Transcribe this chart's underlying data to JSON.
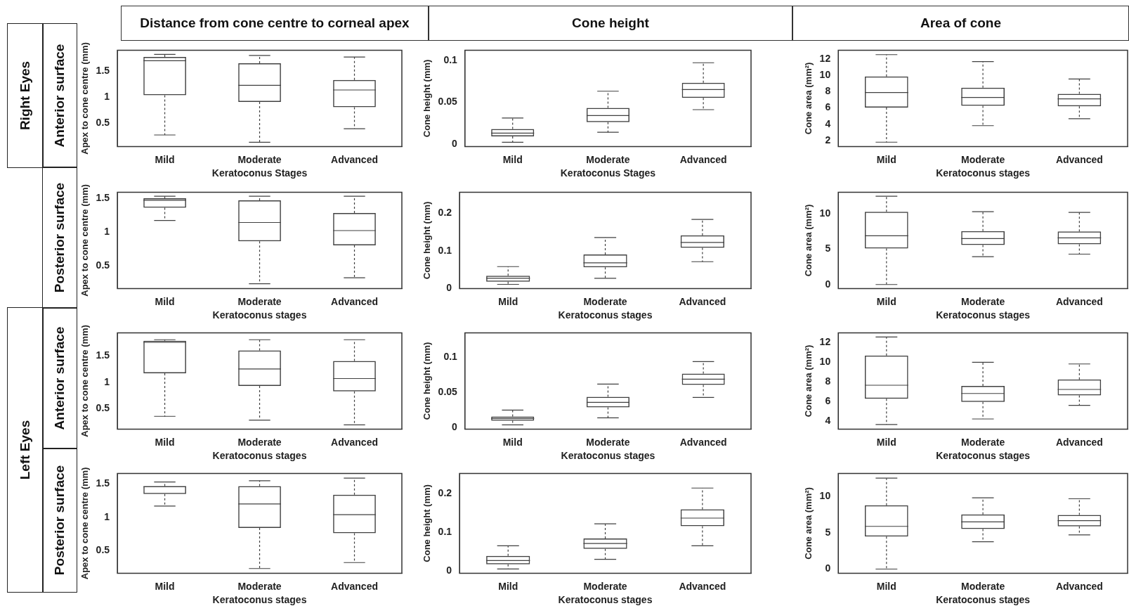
{
  "chart_data": [
    {
      "type": "box",
      "title": "Distance from cone centre to corneal apex",
      "categories": [
        "Mild",
        "Moderate",
        "Advanced"
      ],
      "xlabel": "Keratoconus Stages",
      "ylabel": "Apex to cone centre (mm)",
      "ylim": [
        0.06,
        1.9
      ],
      "yticks": [
        0.5,
        1,
        1.5
      ],
      "grid": false,
      "series": [
        {
          "color": "#404040",
          "boxes": [
            {
              "low": 0.28,
              "q1": 1.04,
              "median": 1.7,
              "q3": 1.77,
              "high": 1.82
            },
            {
              "low": 0.14,
              "q1": 0.91,
              "median": 1.23,
              "q3": 1.65,
              "high": 1.8
            },
            {
              "low": 0.4,
              "q1": 0.81,
              "median": 1.14,
              "q3": 1.33,
              "high": 1.77
            }
          ]
        }
      ]
    },
    {
      "type": "box",
      "title": "Cone height",
      "categories": [
        "Mild",
        "Moderate",
        "Advanced"
      ],
      "xlabel": "Keratoconus Stages",
      "ylabel": "Cone height (mm)",
      "ylim": [
        -0.003,
        0.112
      ],
      "yticks": [
        0,
        0.05,
        0.1
      ],
      "grid": false,
      "series": [
        {
          "color": "#404040",
          "boxes": [
            {
              "low": 0.002,
              "q1": 0.009,
              "median": 0.013,
              "q3": 0.018,
              "high": 0.031
            },
            {
              "low": 0.014,
              "q1": 0.026,
              "median": 0.034,
              "q3": 0.043,
              "high": 0.063
            },
            {
              "low": 0.041,
              "q1": 0.055,
              "median": 0.065,
              "q3": 0.073,
              "high": 0.097
            }
          ]
        }
      ]
    },
    {
      "type": "box",
      "title": "Area of cone",
      "categories": [
        "Mild",
        "Moderate",
        "Advanced"
      ],
      "xlabel": "Keratoconus stages",
      "ylabel": "Cone area (mm²)",
      "ylim": [
        1.27,
        13.1
      ],
      "yticks": [
        2,
        4,
        6,
        8,
        10,
        12
      ],
      "grid": false,
      "series": [
        {
          "color": "#404040",
          "boxes": [
            {
              "low": 1.8,
              "q1": 6.05,
              "median": 7.9,
              "q3": 9.87,
              "high": 12.55
            },
            {
              "low": 3.83,
              "q1": 6.28,
              "median": 7.3,
              "q3": 8.5,
              "high": 11.7
            },
            {
              "low": 4.69,
              "q1": 6.2,
              "median": 7.13,
              "q3": 7.74,
              "high": 9.57
            }
          ]
        }
      ]
    },
    {
      "type": "box",
      "categories": [
        "Mild",
        "Moderate",
        "Advanced"
      ],
      "xlabel": "Keratoconus stages",
      "ylabel": "Apex to cone centre (mm)",
      "ylim": [
        0.16,
        1.59
      ],
      "yticks": [
        0.5,
        1,
        1.5
      ],
      "grid": false,
      "series": [
        {
          "color": "#404040",
          "boxes": [
            {
              "low": 1.17,
              "q1": 1.36,
              "median": 1.47,
              "q3": 1.5,
              "high": 1.53
            },
            {
              "low": 0.23,
              "q1": 0.86,
              "median": 1.14,
              "q3": 1.47,
              "high": 1.53
            },
            {
              "low": 0.32,
              "q1": 0.8,
              "median": 1.02,
              "q3": 1.28,
              "high": 1.53
            }
          ]
        }
      ]
    },
    {
      "type": "box",
      "categories": [
        "Mild",
        "Moderate",
        "Advanced"
      ],
      "xlabel": "Keratoconus stages",
      "ylabel": "Cone height (mm)",
      "ylim": [
        0,
        0.255
      ],
      "yticks": [
        0,
        0.1,
        0.2
      ],
      "grid": false,
      "series": [
        {
          "color": "#404040",
          "boxes": [
            {
              "low": 0.011,
              "q1": 0.018,
              "median": 0.027,
              "q3": 0.034,
              "high": 0.058
            },
            {
              "low": 0.027,
              "q1": 0.056,
              "median": 0.068,
              "q3": 0.09,
              "high": 0.135
            },
            {
              "low": 0.071,
              "q1": 0.108,
              "median": 0.122,
              "q3": 0.141,
              "high": 0.183
            }
          ]
        }
      ]
    },
    {
      "type": "box",
      "categories": [
        "Mild",
        "Moderate",
        "Advanced"
      ],
      "xlabel": "Keratoconus stages",
      "ylabel": "Cone area (mm²)",
      "ylim": [
        -0.56,
        13.06
      ],
      "yticks": [
        0,
        5,
        10
      ],
      "grid": false,
      "series": [
        {
          "color": "#404040",
          "boxes": [
            {
              "low": 0,
              "q1": 5.1,
              "median": 6.9,
              "q3": 10.3,
              "high": 12.5
            },
            {
              "low": 3.95,
              "q1": 5.6,
              "median": 6.5,
              "q3": 7.55,
              "high": 10.3
            },
            {
              "low": 4.3,
              "q1": 5.7,
              "median": 6.6,
              "q3": 7.5,
              "high": 10.2
            }
          ]
        }
      ]
    },
    {
      "type": "box",
      "categories": [
        "Mild",
        "Moderate",
        "Advanced"
      ],
      "xlabel": "Keratoconus stages",
      "ylabel": "Apex to cone centre (mm)",
      "ylim": [
        0.12,
        1.93
      ],
      "yticks": [
        0.5,
        1,
        1.5
      ],
      "grid": false,
      "series": [
        {
          "color": "#404040",
          "boxes": [
            {
              "low": 0.36,
              "q1": 1.17,
              "median": 1.75,
              "q3": 1.78,
              "high": 1.8
            },
            {
              "low": 0.29,
              "q1": 0.93,
              "median": 1.25,
              "q3": 1.6,
              "high": 1.8
            },
            {
              "low": 0.2,
              "q1": 0.83,
              "median": 1.07,
              "q3": 1.4,
              "high": 1.8
            }
          ]
        }
      ]
    },
    {
      "type": "box",
      "categories": [
        "Mild",
        "Moderate",
        "Advanced"
      ],
      "xlabel": "Keratoconus stages",
      "ylabel": "Cone height (mm)",
      "ylim": [
        -0.002,
        0.135
      ],
      "yticks": [
        0,
        0.05,
        0.1
      ],
      "grid": false,
      "series": [
        {
          "color": "#404040",
          "boxes": [
            {
              "low": 0.004,
              "q1": 0.01,
              "median": 0.013,
              "q3": 0.016,
              "high": 0.025
            },
            {
              "low": 0.014,
              "q1": 0.029,
              "median": 0.036,
              "q3": 0.044,
              "high": 0.062
            },
            {
              "low": 0.043,
              "q1": 0.061,
              "median": 0.069,
              "q3": 0.077,
              "high": 0.094
            }
          ]
        }
      ]
    },
    {
      "type": "box",
      "categories": [
        "Mild",
        "Moderate",
        "Advanced"
      ],
      "xlabel": "Keratoconus stages",
      "ylabel": "Cone area (mm²)",
      "ylim": [
        3.21,
        13
      ],
      "yticks": [
        4,
        6,
        8,
        10,
        12
      ],
      "grid": false,
      "series": [
        {
          "color": "#404040",
          "boxes": [
            {
              "low": 3.67,
              "q1": 6.29,
              "median": 7.67,
              "q3": 10.69,
              "high": 12.57
            },
            {
              "low": 4.24,
              "q1": 5.98,
              "median": 6.83,
              "q3": 7.6,
              "high": 10
            },
            {
              "low": 5.62,
              "q1": 6.64,
              "median": 7.24,
              "q3": 8.26,
              "high": 9.83
            }
          ]
        }
      ]
    },
    {
      "type": "box",
      "categories": [
        "Mild",
        "Moderate",
        "Advanced"
      ],
      "xlabel": "Keratoconus stages",
      "ylabel": "Apex to cone centre (mm)",
      "ylim": [
        0.16,
        1.66
      ],
      "yticks": [
        0.5,
        1,
        1.5
      ],
      "grid": false,
      "series": [
        {
          "color": "#404040",
          "boxes": [
            {
              "low": 1.17,
              "q1": 1.35,
              "median": 1.46,
              "q3": 1.47,
              "high": 1.53
            },
            {
              "low": 0.23,
              "q1": 0.84,
              "median": 1.2,
              "q3": 1.47,
              "high": 1.55
            },
            {
              "low": 0.32,
              "q1": 0.76,
              "median": 1.04,
              "q3": 1.34,
              "high": 1.59
            }
          ]
        }
      ]
    },
    {
      "type": "box",
      "categories": [
        "Mild",
        "Moderate",
        "Advanced"
      ],
      "xlabel": "Keratoconus stages",
      "ylabel": "Cone height (mm)",
      "ylim": [
        -0.006,
        0.253
      ],
      "yticks": [
        0,
        0.1,
        0.2
      ],
      "grid": false,
      "series": [
        {
          "color": "#404040",
          "boxes": [
            {
              "low": 0.005,
              "q1": 0.017,
              "median": 0.027,
              "q3": 0.039,
              "high": 0.065
            },
            {
              "low": 0.03,
              "q1": 0.057,
              "median": 0.071,
              "q3": 0.084,
              "high": 0.122
            },
            {
              "low": 0.065,
              "q1": 0.116,
              "median": 0.137,
              "q3": 0.16,
              "high": 0.215
            }
          ]
        }
      ]
    },
    {
      "type": "box",
      "categories": [
        "Mild",
        "Moderate",
        "Advanced"
      ],
      "xlabel": "Keratoconus stages",
      "ylabel": "Cone area (mm²)",
      "ylim": [
        -0.57,
        13.15
      ],
      "yticks": [
        0,
        5,
        10
      ],
      "grid": false,
      "series": [
        {
          "color": "#404040",
          "boxes": [
            {
              "low": 0,
              "q1": 4.46,
              "median": 5.87,
              "q3": 8.76,
              "high": 12.5
            },
            {
              "low": 3.76,
              "q1": 5.5,
              "median": 6.48,
              "q3": 7.52,
              "high": 9.8
            },
            {
              "low": 4.7,
              "q1": 5.87,
              "median": 6.65,
              "q3": 7.45,
              "high": 9.66
            }
          ]
        }
      ]
    },
    {
      "type": "other",
      "annotations": [
        "Right Eyes",
        "Anterior surface",
        "Posterior surface",
        "Left Eyes",
        "Anterior surface",
        "Posterior surface"
      ]
    }
  ]
}
